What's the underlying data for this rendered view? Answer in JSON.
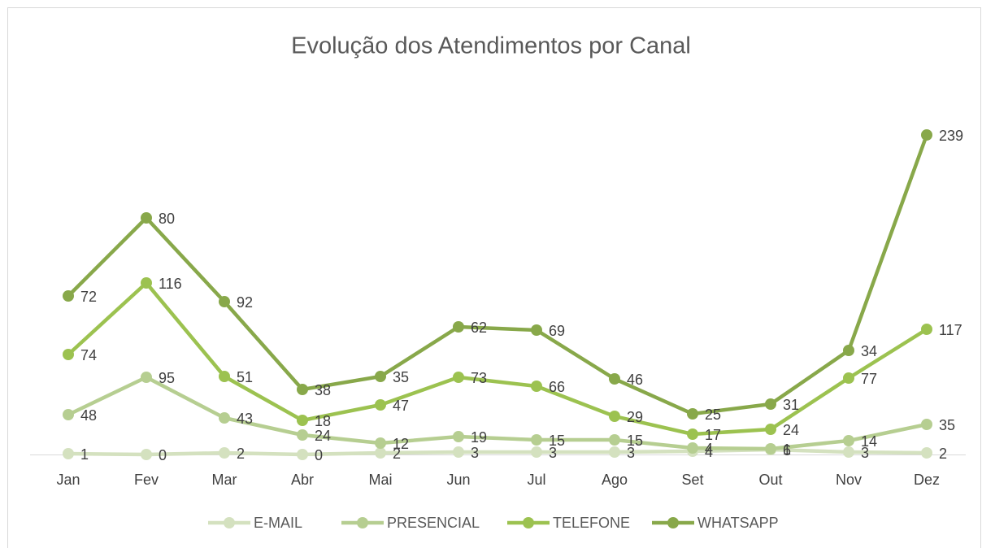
{
  "chart_data": {
    "type": "line",
    "stacked": true,
    "title": "Evolução dos Atendimentos por Canal",
    "categories": [
      "Jan",
      "Fev",
      "Mar",
      "Abr",
      "Mai",
      "Jun",
      "Jul",
      "Ago",
      "Set",
      "Out",
      "Nov",
      "Dez"
    ],
    "series": [
      {
        "name": "E-MAIL",
        "color": "#d4e1bf",
        "values": [
          1,
          0,
          2,
          0,
          2,
          3,
          3,
          3,
          4,
          6,
          3,
          2
        ]
      },
      {
        "name": "PRESENCIAL",
        "color": "#b6ce91",
        "values": [
          48,
          95,
          43,
          24,
          12,
          19,
          15,
          15,
          4,
          1,
          14,
          35
        ]
      },
      {
        "name": "TELEFONE",
        "color": "#9cc250",
        "values": [
          74,
          116,
          51,
          18,
          47,
          73,
          66,
          29,
          17,
          24,
          77,
          117
        ]
      },
      {
        "name": "WHATSAPP",
        "color": "#88a84a",
        "values": [
          72,
          80,
          92,
          38,
          35,
          62,
          69,
          46,
          25,
          31,
          34,
          239
        ]
      }
    ],
    "ylim": [
      0,
      400
    ],
    "legend": "bottom"
  }
}
